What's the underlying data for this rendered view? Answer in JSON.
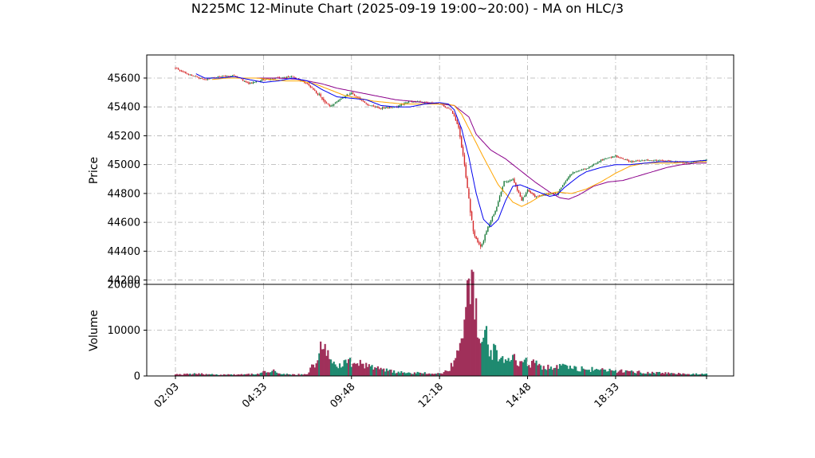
{
  "chart_data": {
    "type": "candlestick",
    "title": "N225MC 12-Minute Chart (2025-09-19 19:00~20:00) - MA on HLC/3",
    "price_panel": {
      "ylabel": "Price",
      "ylim": [
        44170,
        45760
      ],
      "yticks": [
        44200,
        44400,
        44600,
        44800,
        45000,
        45200,
        45400,
        45600
      ],
      "grid": true
    },
    "volume_panel": {
      "ylabel": "Volume",
      "ylim": [
        0,
        20000
      ],
      "yticks": [
        0,
        10000,
        20000
      ],
      "grid": true
    },
    "x": {
      "ticklabels": [
        "02:03",
        "04:33",
        "09:48",
        "12:18",
        "14:48",
        "18:33",
        ""
      ],
      "bar_count": 300
    },
    "colors": {
      "up": "#1a7a3a",
      "down": "#d62728",
      "vol_up": "#1f8a70",
      "vol_down": "#a0305a",
      "ma_fast": "#0000ee",
      "ma_mid": "#ffa500",
      "ma_slow": "#8b008b"
    },
    "price_anchors": [
      [
        0,
        45670
      ],
      [
        10,
        45620
      ],
      [
        20,
        45590
      ],
      [
        30,
        45610
      ],
      [
        40,
        45620
      ],
      [
        50,
        45560
      ],
      [
        60,
        45590
      ],
      [
        70,
        45600
      ],
      [
        80,
        45610
      ],
      [
        90,
        45560
      ],
      [
        100,
        45460
      ],
      [
        105,
        45400
      ],
      [
        110,
        45440
      ],
      [
        120,
        45500
      ],
      [
        130,
        45420
      ],
      [
        140,
        45390
      ],
      [
        150,
        45400
      ],
      [
        160,
        45440
      ],
      [
        170,
        45430
      ],
      [
        180,
        45420
      ],
      [
        188,
        45380
      ],
      [
        193,
        45250
      ],
      [
        197,
        45000
      ],
      [
        200,
        44750
      ],
      [
        203,
        44550
      ],
      [
        206,
        44450
      ],
      [
        208,
        44420
      ],
      [
        212,
        44540
      ],
      [
        218,
        44680
      ],
      [
        224,
        44880
      ],
      [
        230,
        44900
      ],
      [
        236,
        44750
      ],
      [
        240,
        44820
      ],
      [
        245,
        44780
      ],
      [
        250,
        44790
      ],
      [
        260,
        44800
      ],
      [
        265,
        44870
      ],
      [
        270,
        44940
      ],
      [
        280,
        44970
      ],
      [
        290,
        45030
      ],
      [
        300,
        45060
      ],
      [
        310,
        45020
      ],
      [
        320,
        45030
      ],
      [
        330,
        45030
      ],
      [
        340,
        45020
      ],
      [
        350,
        45010
      ],
      [
        362,
        45030
      ]
    ],
    "ma_fast": [
      [
        14,
        45630
      ],
      [
        20,
        45600
      ],
      [
        30,
        45600
      ],
      [
        40,
        45610
      ],
      [
        50,
        45590
      ],
      [
        60,
        45570
      ],
      [
        70,
        45580
      ],
      [
        80,
        45600
      ],
      [
        90,
        45580
      ],
      [
        100,
        45520
      ],
      [
        110,
        45470
      ],
      [
        120,
        45460
      ],
      [
        130,
        45450
      ],
      [
        140,
        45410
      ],
      [
        150,
        45400
      ],
      [
        160,
        45400
      ],
      [
        170,
        45420
      ],
      [
        180,
        45430
      ],
      [
        186,
        45420
      ],
      [
        190,
        45380
      ],
      [
        195,
        45250
      ],
      [
        200,
        45050
      ],
      [
        205,
        44800
      ],
      [
        210,
        44620
      ],
      [
        215,
        44570
      ],
      [
        220,
        44620
      ],
      [
        225,
        44750
      ],
      [
        230,
        44850
      ],
      [
        235,
        44860
      ],
      [
        240,
        44840
      ],
      [
        245,
        44820
      ],
      [
        250,
        44800
      ],
      [
        255,
        44780
      ],
      [
        260,
        44790
      ],
      [
        265,
        44840
      ],
      [
        270,
        44880
      ],
      [
        275,
        44920
      ],
      [
        280,
        44950
      ],
      [
        290,
        44980
      ],
      [
        300,
        45000
      ],
      [
        310,
        45000
      ],
      [
        320,
        45010
      ],
      [
        330,
        45020
      ],
      [
        340,
        45020
      ],
      [
        350,
        45020
      ],
      [
        362,
        45030
      ]
    ],
    "ma_mid": [
      [
        25,
        45590
      ],
      [
        35,
        45600
      ],
      [
        45,
        45600
      ],
      [
        55,
        45600
      ],
      [
        65,
        45590
      ],
      [
        75,
        45580
      ],
      [
        85,
        45580
      ],
      [
        95,
        45560
      ],
      [
        105,
        45520
      ],
      [
        115,
        45480
      ],
      [
        125,
        45460
      ],
      [
        135,
        45440
      ],
      [
        145,
        45430
      ],
      [
        155,
        45420
      ],
      [
        165,
        45420
      ],
      [
        175,
        45420
      ],
      [
        185,
        45420
      ],
      [
        190,
        45410
      ],
      [
        195,
        45350
      ],
      [
        200,
        45250
      ],
      [
        210,
        45050
      ],
      [
        220,
        44860
      ],
      [
        230,
        44740
      ],
      [
        236,
        44710
      ],
      [
        242,
        44740
      ],
      [
        250,
        44790
      ],
      [
        260,
        44810
      ],
      [
        270,
        44800
      ],
      [
        280,
        44830
      ],
      [
        290,
        44880
      ],
      [
        300,
        44940
      ],
      [
        310,
        44990
      ],
      [
        320,
        45010
      ],
      [
        330,
        45010
      ],
      [
        340,
        45010
      ],
      [
        350,
        45020
      ],
      [
        362,
        45020
      ]
    ],
    "ma_slow": [
      [
        40,
        45600
      ],
      [
        55,
        45600
      ],
      [
        70,
        45600
      ],
      [
        85,
        45590
      ],
      [
        100,
        45560
      ],
      [
        110,
        45530
      ],
      [
        120,
        45510
      ],
      [
        130,
        45490
      ],
      [
        140,
        45470
      ],
      [
        150,
        45450
      ],
      [
        160,
        45440
      ],
      [
        170,
        45430
      ],
      [
        180,
        45420
      ],
      [
        190,
        45410
      ],
      [
        200,
        45330
      ],
      [
        205,
        45210
      ],
      [
        215,
        45100
      ],
      [
        225,
        45040
      ],
      [
        235,
        44960
      ],
      [
        245,
        44880
      ],
      [
        255,
        44810
      ],
      [
        262,
        44770
      ],
      [
        268,
        44760
      ],
      [
        275,
        44790
      ],
      [
        285,
        44850
      ],
      [
        295,
        44880
      ],
      [
        305,
        44890
      ],
      [
        315,
        44920
      ],
      [
        325,
        44950
      ],
      [
        335,
        44980
      ],
      [
        345,
        45000
      ],
      [
        355,
        45010
      ],
      [
        362,
        45010
      ]
    ],
    "volume_anchors": [
      [
        0,
        300
      ],
      [
        15,
        500
      ],
      [
        30,
        300
      ],
      [
        55,
        400
      ],
      [
        65,
        1200
      ],
      [
        75,
        400
      ],
      [
        90,
        300
      ],
      [
        95,
        3000
      ],
      [
        100,
        7200
      ],
      [
        105,
        4000
      ],
      [
        110,
        2200
      ],
      [
        120,
        3300
      ],
      [
        130,
        2500
      ],
      [
        140,
        1400
      ],
      [
        150,
        900
      ],
      [
        160,
        700
      ],
      [
        170,
        600
      ],
      [
        180,
        500
      ],
      [
        185,
        1000
      ],
      [
        190,
        3000
      ],
      [
        195,
        8000
      ],
      [
        199,
        15000
      ],
      [
        202,
        18000
      ],
      [
        206,
        14000
      ],
      [
        210,
        9000
      ],
      [
        215,
        6000
      ],
      [
        220,
        5000
      ],
      [
        225,
        4200
      ],
      [
        230,
        3600
      ],
      [
        240,
        3000
      ],
      [
        250,
        2200
      ],
      [
        260,
        2000
      ],
      [
        270,
        1800
      ],
      [
        275,
        1600
      ],
      [
        285,
        1400
      ],
      [
        300,
        1100
      ],
      [
        315,
        900
      ],
      [
        330,
        700
      ],
      [
        345,
        500
      ],
      [
        362,
        400
      ]
    ]
  }
}
